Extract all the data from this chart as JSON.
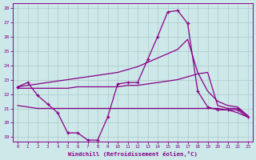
{
  "xlabel": "Windchill (Refroidissement éolien,°C)",
  "background_color": "#cce8e8",
  "grid_color": "#b0c8c8",
  "line_color": "#880088",
  "xlim": [
    -0.5,
    23.5
  ],
  "ylim": [
    18.7,
    28.3
  ],
  "yticks": [
    19,
    20,
    21,
    22,
    23,
    24,
    25,
    26,
    27,
    28
  ],
  "xticks": [
    0,
    1,
    2,
    3,
    4,
    5,
    6,
    7,
    8,
    9,
    10,
    11,
    12,
    13,
    14,
    15,
    16,
    17,
    18,
    19,
    20,
    21,
    22,
    23
  ],
  "series": [
    {
      "x": [
        0,
        1,
        2,
        3,
        4,
        5,
        6,
        7,
        8,
        9,
        10,
        11,
        12,
        13,
        14,
        15,
        16,
        17,
        18,
        19,
        20,
        21,
        22,
        23
      ],
      "y": [
        22.5,
        22.8,
        21.9,
        21.3,
        20.7,
        19.3,
        19.3,
        18.8,
        18.8,
        20.4,
        22.7,
        22.8,
        22.8,
        24.4,
        26.0,
        27.7,
        27.8,
        26.9,
        22.2,
        21.1,
        20.9,
        20.9,
        20.9,
        20.4
      ],
      "marker": true,
      "linewidth": 0.9
    },
    {
      "x": [
        0,
        1,
        2,
        3,
        4,
        5,
        6,
        7,
        8,
        9,
        10,
        11,
        12,
        13,
        14,
        15,
        16,
        17,
        18,
        19,
        20,
        21,
        22,
        23
      ],
      "y": [
        22.5,
        22.6,
        22.7,
        22.8,
        22.9,
        23.0,
        23.1,
        23.2,
        23.3,
        23.4,
        23.5,
        23.7,
        23.9,
        24.2,
        24.5,
        24.8,
        25.1,
        25.8,
        23.5,
        22.2,
        21.5,
        21.2,
        21.1,
        20.5
      ],
      "marker": false,
      "linewidth": 0.9
    },
    {
      "x": [
        0,
        1,
        2,
        3,
        4,
        5,
        6,
        7,
        8,
        9,
        10,
        11,
        12,
        13,
        14,
        15,
        16,
        17,
        18,
        19,
        20,
        21,
        22,
        23
      ],
      "y": [
        22.4,
        22.4,
        22.4,
        22.4,
        22.4,
        22.4,
        22.5,
        22.5,
        22.5,
        22.5,
        22.5,
        22.6,
        22.6,
        22.7,
        22.8,
        22.9,
        23.0,
        23.2,
        23.4,
        23.5,
        21.2,
        21.0,
        21.0,
        20.5
      ],
      "marker": false,
      "linewidth": 0.9
    },
    {
      "x": [
        0,
        1,
        2,
        3,
        4,
        5,
        6,
        7,
        8,
        9,
        10,
        11,
        12,
        13,
        14,
        15,
        16,
        17,
        18,
        19,
        20,
        21,
        22,
        23
      ],
      "y": [
        21.2,
        21.1,
        21.0,
        21.0,
        21.0,
        21.0,
        21.0,
        21.0,
        21.0,
        21.0,
        21.0,
        21.0,
        21.0,
        21.0,
        21.0,
        21.0,
        21.0,
        21.0,
        21.0,
        21.0,
        21.0,
        20.9,
        20.7,
        20.4
      ],
      "marker": false,
      "linewidth": 0.9
    }
  ]
}
